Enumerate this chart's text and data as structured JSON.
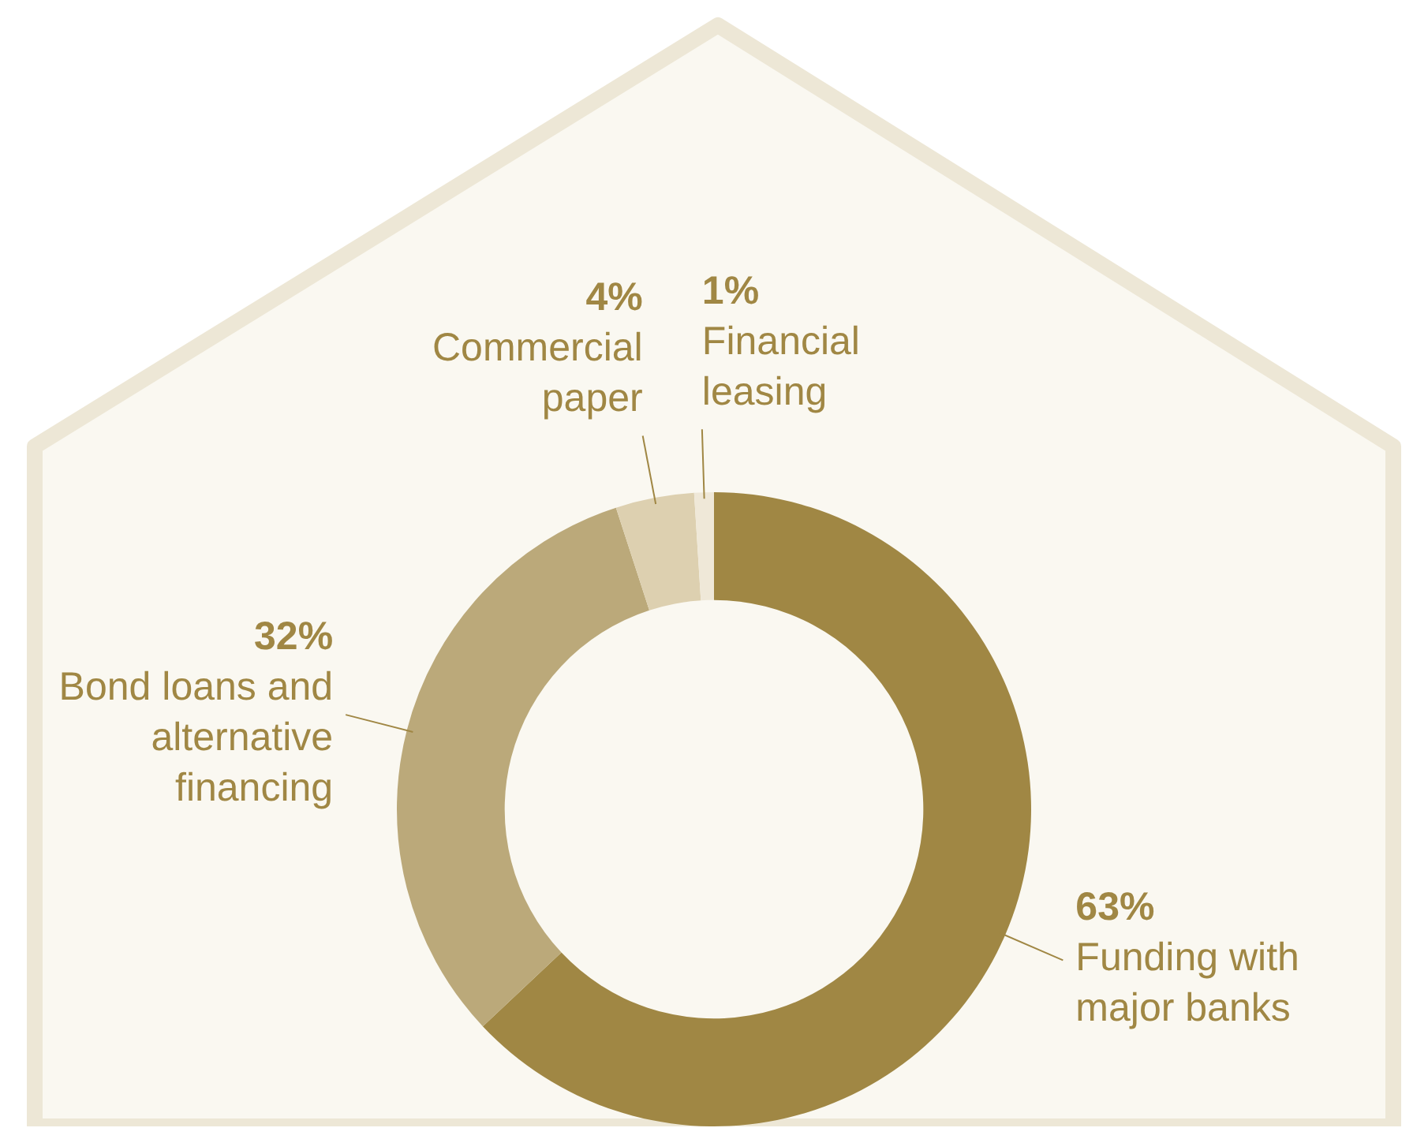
{
  "chart_data": {
    "type": "donut",
    "categories": [
      "Funding with major banks",
      "Bond loans and alternative financing",
      "Commercial paper",
      "Financial leasing"
    ],
    "values": [
      63,
      32,
      4,
      1
    ],
    "colors": [
      "#a08744",
      "#bba97a",
      "#ddd0b0",
      "#efe8d8"
    ],
    "value_labels": [
      "63%",
      "32%",
      "4%",
      "1%"
    ]
  }
}
